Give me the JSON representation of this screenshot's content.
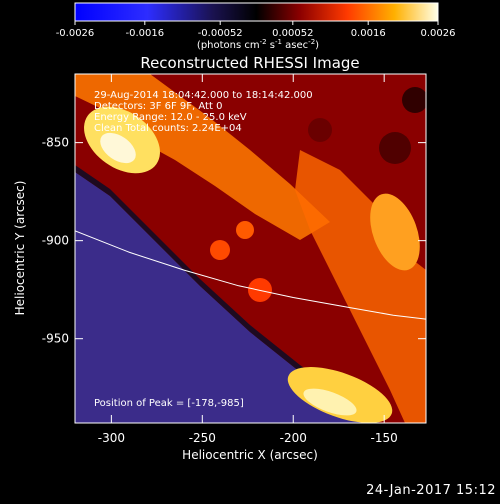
{
  "chart_data": {
    "type": "heatmap",
    "title": "Reconstructed RHESSI Image",
    "xlabel": "Heliocentric X (arcsec)",
    "ylabel": "Heliocentric Y (arcsec)",
    "xlim": [
      -320,
      -127
    ],
    "ylim": [
      -993,
      -815
    ],
    "x_ticks": [
      -300,
      -250,
      -200,
      -150
    ],
    "y_ticks": [
      -850,
      -900,
      -950
    ],
    "colorbar": {
      "min": -0.0026,
      "max": 0.0026,
      "tick_values": [
        -0.0026,
        -0.0016,
        -0.00052,
        0.00052,
        0.0016,
        0.0026
      ],
      "tick_labels": [
        "-0.0026",
        "-0.0016",
        "-0.00052",
        "0.00052",
        "0.0016",
        "0.0026"
      ],
      "unit_parts": [
        "(photons cm",
        "-2",
        " s",
        "-1",
        " asec",
        "-2",
        ")"
      ]
    },
    "annotations": {
      "time": "29-Aug-2014 18:04:42.000 to 18:14:42.000",
      "detectors": "Detectors: 3F 6F 9F, Att 0",
      "energy": "Energy Range: 12.0 - 25.0 keV",
      "counts": "Clean     Total counts: 2.24E+04",
      "peak": "Position of Peak = [-178,-985]"
    },
    "limb_curve": [
      [
        -320,
        -895
      ],
      [
        -290,
        -906
      ],
      [
        -260,
        -915
      ],
      [
        -230,
        -923
      ],
      [
        -200,
        -929
      ],
      [
        -170,
        -934
      ],
      [
        -145,
        -938
      ],
      [
        -127,
        -940
      ]
    ],
    "grid": false,
    "colors": {
      "bg": "#000000",
      "text": "#ffffff",
      "limb": "#ffffff"
    }
  },
  "footer": {
    "date": "24-Jan-2017 15:12"
  }
}
